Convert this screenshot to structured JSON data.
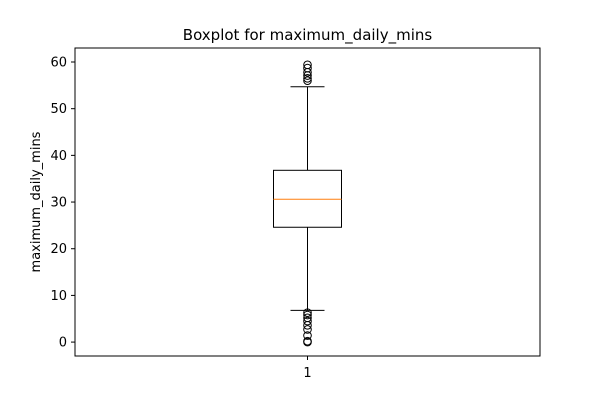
{
  "chart_data": {
    "type": "boxplot",
    "title": "Boxplot for maximum_daily_mins",
    "xlabel": "",
    "ylabel": "maximum_daily_mins",
    "ylim": [
      -2.98,
      63.0
    ],
    "yticks": [
      0,
      10,
      20,
      30,
      40,
      50,
      60
    ],
    "categories": [
      "1"
    ],
    "boxes": [
      {
        "category": "1",
        "whisker_low": 6.8,
        "q1": 24.6,
        "median": 30.6,
        "q3": 36.8,
        "whisker_high": 54.7,
        "outliers": [
          0.0,
          0.2,
          1.4,
          2.7,
          3.6,
          4.5,
          5.2,
          5.8,
          6.3,
          56.0,
          56.5,
          57.1,
          57.8,
          58.7,
          59.4
        ]
      }
    ],
    "colors": {
      "box": "#000000",
      "median": "#ff7f0e",
      "whisker": "#000000",
      "outlier": "#000000"
    },
    "grid": false,
    "legend": "none"
  }
}
